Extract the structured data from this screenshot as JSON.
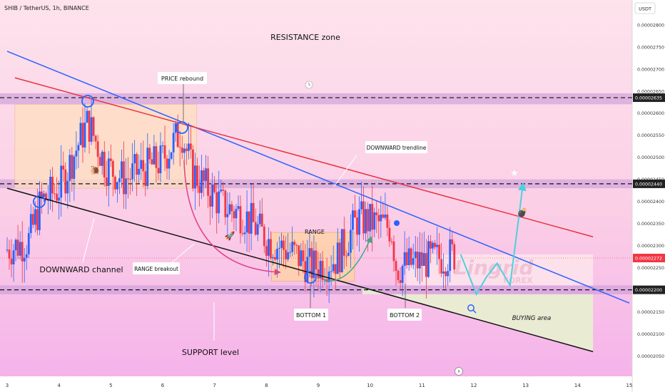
{
  "header": {
    "title": "SHIB / TetherUS, 1h, BINANCE"
  },
  "price_axis": {
    "currency": "USDT",
    "ticks": [
      "0.00002800",
      "0.00002750",
      "0.00002700",
      "0.00002650",
      "0.00002600",
      "0.00002550",
      "0.00002500",
      "0.00002450",
      "0.00002400",
      "0.00002350",
      "0.00002300",
      "0.00002250",
      "0.00002150",
      "0.00002100",
      "0.00002050"
    ],
    "badges": [
      {
        "label": "0.00002635",
        "color": "#222222"
      },
      {
        "label": "0.00002440",
        "color": "#222222"
      },
      {
        "label": "0.00002272",
        "color": "#f23645"
      },
      {
        "label": "0.00002200",
        "color": "#222222"
      }
    ]
  },
  "time_axis": {
    "ticks": [
      "3",
      "4",
      "5",
      "6",
      "7",
      "8",
      "9",
      "10",
      "11",
      "12",
      "13",
      "14",
      "15"
    ]
  },
  "annotations": {
    "resistance": "RESISTANCE zone",
    "price_rebound": "PRICE rebound",
    "downward_trendline": "DOWNWARD trendline",
    "range": "RANGE",
    "range_breakout": "RANGE breakout",
    "downward_channel": "DOWNWARD channel",
    "support": "SUPPORT level",
    "bottom1": "BOTTOM 1",
    "bottom2": "BOTTOM 2",
    "buying": "BUYING area",
    "watermark_top": "Lingrid",
    "watermark_bottom": "FOREX"
  },
  "colors": {
    "bull": "#2962ff",
    "bear": "#f23645",
    "trend_blue": "#2962ff",
    "trend_red": "#e8343f",
    "channel": "#111111",
    "projection": "#4dd0e1",
    "zone": "#c79bd6",
    "range_box": "#ffd8a8"
  },
  "chart_data": {
    "type": "candlestick",
    "title": "SHIB / TetherUS, 1h, BINANCE",
    "x_axis_ticks": [
      "3",
      "4",
      "5",
      "6",
      "7",
      "8",
      "9",
      "10",
      "11",
      "12",
      "13",
      "14",
      "15"
    ],
    "x_range": [
      3.0,
      15.0
    ],
    "y_range": [
      2.03e-05,
      2.84e-05
    ],
    "y_unit": "USDT",
    "levels": {
      "resistance_zone": [
        2.62e-05,
        2.645e-05
      ],
      "mid_zone": [
        2.43e-05,
        2.45e-05
      ],
      "support_zone": [
        2.19e-05,
        2.21e-05
      ],
      "marked_prices": [
        2.635e-05,
        2.44e-05,
        2.272e-05,
        2.2e-05
      ]
    },
    "trendlines": [
      {
        "label": "DOWNWARD trendline",
        "from": [
          3.0,
          2.74e-05
        ],
        "to": [
          15.0,
          2.17e-05
        ]
      },
      {
        "from": [
          3.15,
          2.68e-05
        ],
        "to": [
          14.3,
          2.32e-05
        ]
      },
      {
        "label": "DOWNWARD channel",
        "from": [
          3.0,
          2.43e-05
        ],
        "to": [
          14.3,
          2.06e-05
        ]
      }
    ],
    "boxes": [
      {
        "x": [
          3.15,
          6.65
        ],
        "y": [
          2.43e-05,
          2.62e-05
        ]
      },
      {
        "label": "RANGE",
        "x": [
          8.1,
          9.7
        ],
        "y": [
          2.22e-05,
          2.33e-05
        ]
      },
      {
        "label": "BUYING area",
        "x": [
          10.7,
          14.3
        ],
        "y": [
          2.06e-05,
          2.19e-05
        ]
      }
    ],
    "projection": [
      [
        11.75,
        2.28e-05
      ],
      [
        12.05,
        2.19e-05
      ],
      [
        12.25,
        2.23e-05
      ],
      [
        12.45,
        2.26e-05
      ],
      [
        12.7,
        2.21e-05
      ],
      [
        12.95,
        2.44e-05
      ]
    ],
    "path_anchors": [
      [
        3.0,
        2.29e-05
      ],
      [
        3.45,
        2.31e-05
      ],
      [
        3.7,
        2.4e-05
      ],
      [
        4.05,
        2.43e-05
      ],
      [
        4.2,
        2.47e-05
      ],
      [
        4.45,
        2.54e-05
      ],
      [
        4.6,
        2.58e-05
      ],
      [
        4.95,
        2.48e-05
      ],
      [
        5.3,
        2.45e-05
      ],
      [
        5.6,
        2.47e-05
      ],
      [
        6.0,
        2.49e-05
      ],
      [
        6.4,
        2.56e-05
      ],
      [
        6.6,
        2.47e-05
      ],
      [
        7.2,
        2.39e-05
      ],
      [
        7.6,
        2.37e-05
      ],
      [
        8.1,
        2.31e-05
      ],
      [
        8.6,
        2.28e-05
      ],
      [
        8.9,
        2.25e-05
      ],
      [
        9.4,
        2.27e-05
      ],
      [
        9.8,
        2.36e-05
      ],
      [
        10.2,
        2.35e-05
      ],
      [
        10.45,
        2.34e-05
      ],
      [
        10.55,
        2.25e-05
      ],
      [
        10.9,
        2.26e-05
      ],
      [
        11.3,
        2.27e-05
      ],
      [
        11.65,
        2.28e-05
      ]
    ]
  }
}
